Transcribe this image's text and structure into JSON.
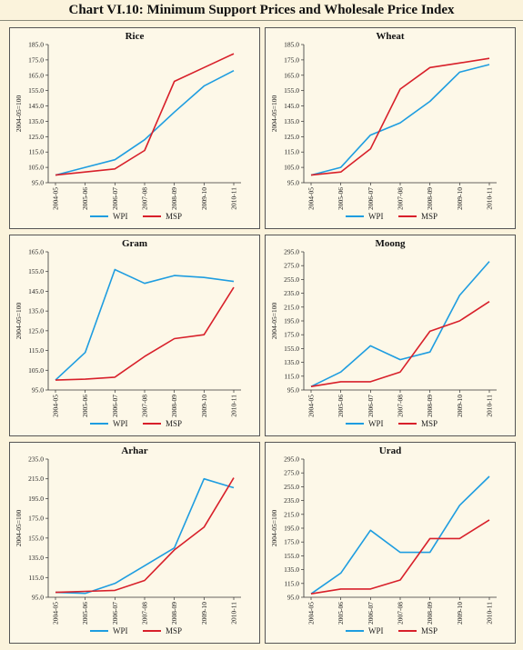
{
  "title": "Chart VI.10: Minimum Support Prices and Wholesale Price Index",
  "colors": {
    "WPI": "#1e9de0",
    "MSP": "#d8202a"
  },
  "chart_data": [
    {
      "type": "line",
      "title": "Rice",
      "ylabel": "2004-05=100",
      "categories": [
        "2004-05",
        "2005-06",
        "2006-07",
        "2007-08",
        "2008-09",
        "2009-10",
        "2010-11"
      ],
      "ylim": [
        95,
        185
      ],
      "yticks": [
        95,
        105,
        115,
        125,
        135,
        145,
        155,
        165,
        175,
        185
      ],
      "series": [
        {
          "name": "WPI",
          "values": [
            100,
            105,
            110,
            123,
            141,
            158,
            168
          ]
        },
        {
          "name": "MSP",
          "values": [
            100,
            102,
            104,
            116,
            161,
            170,
            179
          ]
        }
      ]
    },
    {
      "type": "line",
      "title": "Wheat",
      "ylabel": "2004-05=100",
      "categories": [
        "2004-05",
        "2005-06",
        "2006-07",
        "2007-08",
        "2008-09",
        "2009-10",
        "2010-11"
      ],
      "ylim": [
        95,
        185
      ],
      "yticks": [
        95,
        105,
        115,
        125,
        135,
        145,
        155,
        165,
        175,
        185
      ],
      "series": [
        {
          "name": "WPI",
          "values": [
            100,
            105,
            126,
            134,
            148,
            167,
            172
          ]
        },
        {
          "name": "MSP",
          "values": [
            100,
            102,
            117,
            156,
            170,
            173,
            176
          ]
        }
      ]
    },
    {
      "type": "line",
      "title": "Gram",
      "ylabel": "2004-05=100",
      "categories": [
        "2004-05",
        "2005-06",
        "2006-07",
        "2007-08",
        "2008-09",
        "2009-10",
        "2010-11"
      ],
      "ylim": [
        95,
        165
      ],
      "yticks": [
        95,
        105,
        115,
        125,
        135,
        145,
        155,
        165
      ],
      "series": [
        {
          "name": "WPI",
          "values": [
            100,
            114,
            156,
            149,
            153,
            152,
            150
          ]
        },
        {
          "name": "MSP",
          "values": [
            100,
            100.5,
            101.5,
            112,
            121,
            123,
            147
          ]
        }
      ]
    },
    {
      "type": "line",
      "title": "Moong",
      "ylabel": "2004-05=100",
      "categories": [
        "2004-05",
        "2005-06",
        "2006-07",
        "2007-08",
        "2008-09",
        "2009-10",
        "2010-11"
      ],
      "ylim": [
        95,
        295
      ],
      "yticks": [
        95,
        115,
        135,
        155,
        175,
        195,
        215,
        235,
        255,
        275,
        295
      ],
      "series": [
        {
          "name": "WPI",
          "values": [
            100,
            121,
            159,
            139,
            150,
            232,
            281
          ]
        },
        {
          "name": "MSP",
          "values": [
            100,
            107,
            107,
            121,
            180,
            195,
            223
          ]
        }
      ]
    },
    {
      "type": "line",
      "title": "Arhar",
      "ylabel": "2004-05=100",
      "categories": [
        "2004-05",
        "2005-06",
        "2006-07",
        "2007-08",
        "2008-09",
        "2009-10",
        "2010-11"
      ],
      "ylim": [
        95,
        235
      ],
      "yticks": [
        95,
        115,
        135,
        155,
        175,
        195,
        215,
        235
      ],
      "series": [
        {
          "name": "WPI",
          "values": [
            100,
            99,
            109,
            127,
            145,
            215,
            206
          ]
        },
        {
          "name": "MSP",
          "values": [
            100,
            101,
            102,
            112,
            143,
            166,
            216
          ]
        }
      ]
    },
    {
      "type": "line",
      "title": "Urad",
      "ylabel": "2004-05=100",
      "categories": [
        "2004-05",
        "2005-06",
        "2006-07",
        "2007-08",
        "2008-09",
        "2009-10",
        "2010-11"
      ],
      "ylim": [
        95,
        295
      ],
      "yticks": [
        95,
        115,
        135,
        155,
        175,
        195,
        215,
        235,
        255,
        275,
        295
      ],
      "series": [
        {
          "name": "WPI",
          "values": [
            100,
            130,
            192,
            160,
            160,
            228,
            270
          ]
        },
        {
          "name": "MSP",
          "values": [
            100,
            107,
            107,
            120,
            180,
            180,
            207
          ]
        }
      ]
    }
  ]
}
